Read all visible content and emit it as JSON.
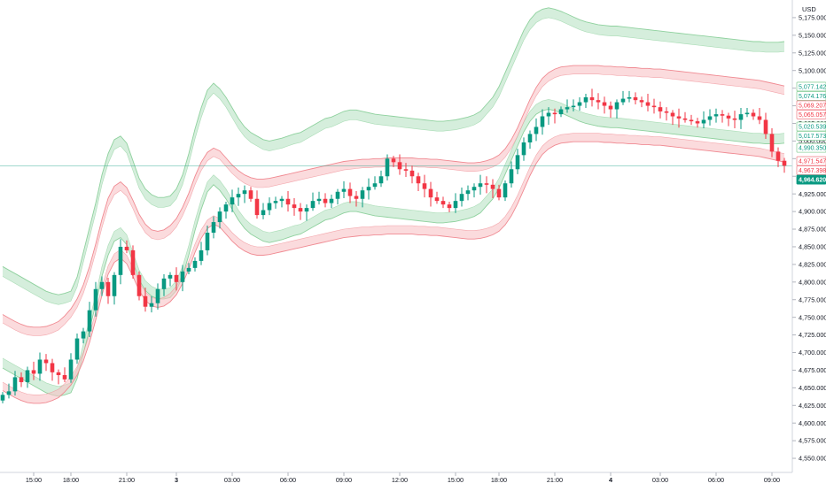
{
  "chart_data": {
    "type": "candlestick",
    "currency": "USD",
    "ylim": [
      4530,
      5200
    ],
    "y_ticks": [
      5175,
      5150,
      5125,
      5100,
      5075,
      5050,
      5025,
      5000,
      4975,
      4950,
      4925,
      4900,
      4875,
      4850,
      4825,
      4800,
      4775,
      4750,
      4725,
      4700,
      4675,
      4650,
      4625,
      4600,
      4575,
      4550
    ],
    "y_tick_labels": [
      "5,175.000",
      "5,150.000",
      "5,125.000",
      "5,100.000",
      "5,075.000",
      "5,050.000",
      "5,025.000",
      "5,000.000",
      "4,975.000",
      "4,950.000",
      "4,925.000",
      "4,900.000",
      "4,875.000",
      "4,850.000",
      "4,825.000",
      "4,800.000",
      "4,775.000",
      "4,750.000",
      "4,725.000",
      "4,700.000",
      "4,675.000",
      "4,650.000",
      "4,625.000",
      "4,600.000",
      "4,575.000",
      "4,550.000"
    ],
    "x_ticks": [
      {
        "label": "15:00",
        "bar": 5,
        "bold": false
      },
      {
        "label": "18:00",
        "bar": 11,
        "bold": false
      },
      {
        "label": "21:00",
        "bar": 20,
        "bold": false
      },
      {
        "label": "3",
        "bar": 28,
        "bold": true
      },
      {
        "label": "03:00",
        "bar": 37,
        "bold": false
      },
      {
        "label": "06:00",
        "bar": 46,
        "bold": false
      },
      {
        "label": "09:00",
        "bar": 55,
        "bold": false
      },
      {
        "label": "12:00",
        "bar": 64,
        "bold": false
      },
      {
        "label": "15:00",
        "bar": 73,
        "bold": false
      },
      {
        "label": "18:00",
        "bar": 80,
        "bold": false
      },
      {
        "label": "21:00",
        "bar": 89,
        "bold": false
      },
      {
        "label": "4",
        "bar": 98,
        "bold": true
      },
      {
        "label": "03:00",
        "bar": 106,
        "bold": false
      },
      {
        "label": "06:00",
        "bar": 115,
        "bold": false
      },
      {
        "label": "09:00",
        "bar": 124,
        "bold": false
      }
    ],
    "bar_count": 127,
    "close_series": [
      4640,
      4645,
      4665,
      4658,
      4675,
      4670,
      4690,
      4685,
      4672,
      4668,
      4662,
      4690,
      4720,
      4730,
      4760,
      4790,
      4800,
      4780,
      4810,
      4850,
      4845,
      4810,
      4780,
      4765,
      4770,
      4790,
      4805,
      4810,
      4800,
      4815,
      4820,
      4830,
      4845,
      4870,
      4885,
      4900,
      4910,
      4920,
      4925,
      4930,
      4918,
      4895,
      4902,
      4912,
      4915,
      4918,
      4910,
      4905,
      4900,
      4905,
      4915,
      4918,
      4912,
      4918,
      4928,
      4932,
      4922,
      4918,
      4930,
      4935,
      4940,
      4950,
      4975,
      4970,
      4960,
      4958,
      4950,
      4940,
      4932,
      4920,
      4915,
      4910,
      4905,
      4915,
      4925,
      4930,
      4935,
      4940,
      4938,
      4932,
      4920,
      4940,
      4960,
      4980,
      4998,
      5010,
      5020,
      5035,
      5040,
      5038,
      5045,
      5048,
      5050,
      5055,
      5062,
      5058,
      5055,
      5050,
      5045,
      5055,
      5060,
      5062,
      5058,
      5055,
      5050,
      5048,
      5042,
      5040,
      5035,
      5032,
      5030,
      5028,
      5025,
      5030,
      5035,
      5038,
      5036,
      5032,
      5030,
      5038,
      5040,
      5035,
      5030,
      5010,
      4985,
      4972,
      4965
    ],
    "bands": {
      "green_center": [
        4750,
        4745,
        4740,
        4735,
        4730,
        4725,
        4720,
        4715,
        4712,
        4710,
        4712,
        4715,
        4735,
        4770,
        4805,
        4840,
        4880,
        4910,
        4930,
        4935,
        4925,
        4900,
        4875,
        4860,
        4852,
        4848,
        4848,
        4850,
        4860,
        4880,
        4910,
        4945,
        4975,
        5000,
        5010,
        5002,
        4990,
        4975,
        4960,
        4948,
        4940,
        4935,
        4930,
        4928,
        4930,
        4932,
        4935,
        4938,
        4940,
        4945,
        4950,
        4955,
        4960,
        4962,
        4966,
        4970,
        4972,
        4972,
        4970,
        4968,
        4966,
        4965,
        4964,
        4963,
        4962,
        4961,
        4960,
        4959,
        4958,
        4957,
        4956,
        4956,
        4957,
        4958,
        4960,
        4962,
        4965,
        4970,
        4980,
        4990,
        5005,
        5025,
        5045,
        5065,
        5085,
        5100,
        5110,
        5115,
        5117,
        5115,
        5112,
        5108,
        5104,
        5100,
        5097,
        5095,
        5093,
        5092,
        5091,
        5091,
        5090,
        5089,
        5088,
        5087,
        5086,
        5085,
        5084,
        5083,
        5082,
        5081,
        5080,
        5079,
        5078,
        5077,
        5076,
        5075,
        5074,
        5073,
        5072,
        5071,
        5070,
        5069,
        5069,
        5068,
        5068,
        5068,
        5069
      ],
      "red_center": [
        4700,
        4695,
        4690,
        4686,
        4683,
        4682,
        4682,
        4683,
        4686,
        4690,
        4698,
        4708,
        4722,
        4742,
        4768,
        4800,
        4835,
        4865,
        4882,
        4888,
        4880,
        4862,
        4842,
        4828,
        4820,
        4818,
        4820,
        4826,
        4836,
        4852,
        4872,
        4896,
        4916,
        4930,
        4936,
        4932,
        4922,
        4912,
        4904,
        4898,
        4894,
        4892,
        4892,
        4893,
        4895,
        4897,
        4899,
        4901,
        4903,
        4905,
        4907,
        4909,
        4911,
        4913,
        4915,
        4917,
        4918,
        4919,
        4920,
        4920,
        4921,
        4921,
        4922,
        4922,
        4922,
        4922,
        4922,
        4921,
        4921,
        4920,
        4920,
        4919,
        4918,
        4917,
        4916,
        4915,
        4915,
        4916,
        4918,
        4921,
        4926,
        4935,
        4948,
        4965,
        4985,
        5005,
        5022,
        5035,
        5043,
        5048,
        5051,
        5052,
        5053,
        5053,
        5053,
        5053,
        5053,
        5052,
        5052,
        5051,
        5051,
        5050,
        5050,
        5049,
        5049,
        5048,
        5048,
        5047,
        5046,
        5045,
        5044,
        5043,
        5042,
        5041,
        5040,
        5039,
        5038,
        5037,
        5036,
        5035,
        5034,
        5033,
        5032,
        5030,
        5028,
        5026,
        5024
      ]
    },
    "price_labels": [
      {
        "text": "5,077.142",
        "value": 5077.142,
        "type": "green"
      },
      {
        "text": "5,074.176",
        "value": 5074.176,
        "type": "green"
      },
      {
        "text": "5,069.207",
        "value": 5069.207,
        "type": "red"
      },
      {
        "text": "5,065.057",
        "value": 5065.057,
        "type": "red"
      },
      {
        "text": "5,020.539",
        "value": 5020.539,
        "type": "green"
      },
      {
        "text": "5,017.573",
        "value": 5017.573,
        "type": "green"
      },
      {
        "text": "4,990.350",
        "value": 4990.35,
        "type": "green"
      },
      {
        "text": "4,971.547",
        "value": 4971.547,
        "type": "red"
      },
      {
        "text": "4,967.398",
        "value": 4967.398,
        "type": "red"
      },
      {
        "text": "4,964.620",
        "value": 4964.62,
        "type": "current"
      }
    ],
    "current_price": 4964.62,
    "colors": {
      "up": "#089981",
      "down": "#f23645",
      "green_band_fill": "#b9e3c4",
      "green_band_line": "#8fd19e",
      "red_band_fill": "#f8c3c7",
      "red_band_line": "#f08a92",
      "current_price_bg": "#089981",
      "grid": "#d1d4dc",
      "text": "#131722"
    }
  }
}
